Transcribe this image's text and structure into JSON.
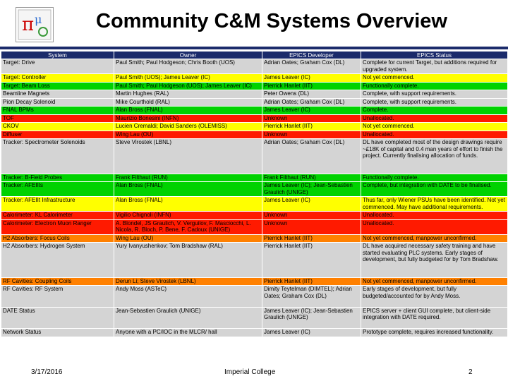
{
  "title": "Community C&M Systems Overview",
  "colors": {
    "green": "#00d200",
    "yellow": "#ffff00",
    "red": "#ff1a00",
    "orange": "#ff8000",
    "grey": "#d4d4d4",
    "header": "#1b2b6b"
  },
  "headers": [
    "System",
    "Owner",
    "EPICS Developer",
    "EPICS Status"
  ],
  "rows": [
    {
      "color": "grey",
      "h": 2,
      "c": [
        "Target: Drive",
        "Paul Smith; Paul Hodgeson; Chris Booth (UOS)",
        "Adrian Oates; Graham Cox (DL)",
        "Complete for current Target, but additions required for upgraded system."
      ]
    },
    {
      "color": "yellow",
      "h": 1,
      "c": [
        "Target: Controller",
        "Paul Smith (UOS); James Leaver (IC)",
        "James Leaver (IC)",
        "Not yet commenced."
      ]
    },
    {
      "color": "green",
      "h": 1,
      "c": [
        "Target: Beam Loss",
        "Paul Smith; Paul Hodgeson (UOS); James Leaver (IC)",
        "Pierrick Hanlet (IIT)",
        "Functionally complete."
      ]
    },
    {
      "color": "grey",
      "h": 1,
      "c": [
        "Beamline Magnets",
        "Martin Hughes (RAL)",
        "Peter Owens (DL)",
        "Complete, with support requirements."
      ]
    },
    {
      "color": "grey",
      "h": 1,
      "c": [
        "Pion Decay Solenoid",
        "Mike Courthold (RAL)",
        "Adrian Oates; Graham Cox (DL)",
        "Complete, with support requirements."
      ]
    },
    {
      "color": "green",
      "h": 1,
      "c": [
        "FNAL BPMs",
        "Alan Bross (FNAL)",
        "James Leaver (IC)",
        "Complete."
      ]
    },
    {
      "color": "red",
      "h": 1,
      "c": [
        "TOF",
        "Maurizio Bonesini (INFN)",
        "Unknown",
        "Unallocated."
      ]
    },
    {
      "color": "yellow",
      "h": 1,
      "c": [
        "CKOV",
        "Lucien Cremaldi; David Sanders (OLEMISS)",
        "Pierrick Hanlet (IIT)",
        "Not yet commenced."
      ]
    },
    {
      "color": "red",
      "h": 1,
      "c": [
        "Diffuser",
        "Wing Lau (OU)",
        "Unknown",
        "Unallocated."
      ]
    },
    {
      "color": "grey",
      "h": 5,
      "c": [
        "Tracker: Spectrometer Solenoids",
        "Steve Virostek (LBNL)",
        "Adrian Oates; Graham Cox (DL)",
        "DL have completed most of the design drawings require ~£18K of capital and 0.4 man years of effort to finish the project. Currently finalising allocation of funds."
      ]
    },
    {
      "color": "green",
      "h": 1,
      "c": [
        "Tracker: B-Field Probes",
        "Frank Filthaut (RUN)",
        "Frank Filthaut (RUN)",
        "Functionally complete."
      ]
    },
    {
      "color": "green",
      "h": 2,
      "c": [
        "Tracker: AFEIIts",
        "Alan Bross (FNAL)",
        "James Leaver (IC); Jean-Sebastien Graulich (UNIGE)",
        "Complete, but integration with DATE to be finalised."
      ]
    },
    {
      "color": "yellow",
      "h": 2,
      "c": [
        "Tracker: AFEIIt Infrastructure",
        "Alan Bross (FNAL)",
        "James Leaver (IC)",
        "Thus far, only Wiener PSUs have been identified. Not yet commenced. May have additional requirements."
      ]
    },
    {
      "color": "red",
      "h": 1,
      "c": [
        "Calorimeter: KL Calorimeter",
        "Vigilio Chignoli (INFN)",
        "Unknown",
        "Unallocated."
      ]
    },
    {
      "color": "red",
      "h": 2,
      "c": [
        "Calorimeter: Electron Muon Ranger",
        "A. Blondel, JS Graulich, V. Verguilov, F. Masciocchi, L. Nicola, R. Bloch, P. Bene, F. Cadoux (UNIGE)",
        "Unknown",
        "Unallocated."
      ]
    },
    {
      "color": "orange",
      "h": 1,
      "c": [
        "H2 Absorbers: Focus Coils",
        "Wing Lau (OU)",
        "Pierrick Hanlet (IIT)",
        "Not yet commenced, manpower unconfirmed."
      ]
    },
    {
      "color": "grey",
      "h": 5,
      "c": [
        "H2 Absorbers: Hydrogen System",
        "Yury Ivanyushenkov; Tom Bradshaw (RAL)",
        "Pierrick Hanlet (IIT)",
        "DL have acquired necessary safety training and have started evaluating PLC systems. Early stages of development, but fully budgeted for by Tom Bradshaw."
      ]
    },
    {
      "color": "orange",
      "h": 1,
      "c": [
        "RF Cavities: Coupling Coils",
        "Derun Li; Steve Virostek (LBNL)",
        "Pierrick Hanlet (IIT)",
        "Not yet commenced, manpower unconfirmed."
      ]
    },
    {
      "color": "grey",
      "h": 3,
      "c": [
        "RF Cavities: RF System",
        "Andy Moss (ASTeC)",
        "Dimity Teytelman (DIMTEL); Adrian Oates; Graham Cox (DL)",
        "Early stages of development, but fully budgeted/accounted for by Andy Moss."
      ]
    },
    {
      "color": "grey",
      "h": 3,
      "c": [
        "DATE Status",
        "Jean-Sebastien Graulich (UNIGE)",
        "James Leaver (IC); Jean-Sebastien Graulich (UNIGE)",
        "EPICS server + client GUI complete, but client-side integration with DATE required."
      ]
    },
    {
      "color": "grey",
      "h": 1,
      "c": [
        "Network Status",
        "Anyone with a PC/IOC in the MLCR/ hall",
        "James Leaver (IC)",
        "Prototype complete, requires increased functionality."
      ]
    }
  ],
  "footer": {
    "date": "3/17/2016",
    "org": "Imperial College",
    "page": "2"
  }
}
